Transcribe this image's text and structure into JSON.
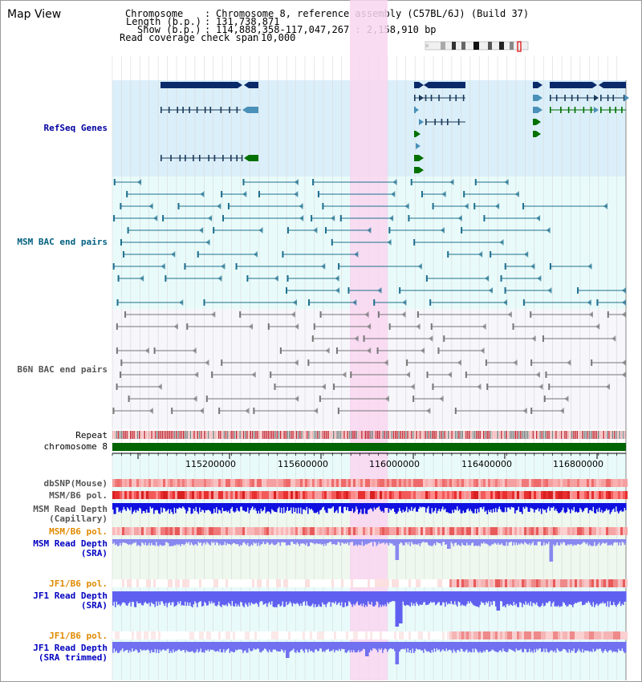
{
  "page": {
    "title": "Map View"
  },
  "info": {
    "chromosome_key": "Chromosome",
    "chromosome_value": "Chromosome 8, reference assembly (C57BL/6J) (Build 37)",
    "length_key": "Length (b.p.)",
    "length_value": "131,738,871",
    "show_key": "Show (b.p.)",
    "show_value": "114,888,358-117,047,267 : 2,158,910 bp",
    "coverage_key": "Read coverage check span",
    "coverage_value": "10,000"
  },
  "tracks": {
    "refseq": "RefSeq Genes",
    "msm_bac": "MSM BAC end pairs",
    "b6n_bac": "B6N BAC end pairs",
    "repeat": "Repeat",
    "chromosome": "chromosome 8",
    "dbsnp": "dbSNP(Mouse)",
    "msm_b6_pol": "MSM/B6 pol.",
    "msm_read_depth_cap_1": "MSM Read Depth",
    "msm_read_depth_cap_2": "(Capillary)",
    "msm_b6_pol_2": "MSM/B6 pol.",
    "msm_read_depth_sra_1": "MSM Read Depth",
    "msm_read_depth_sra_2": "(SRA)",
    "jf1_b6_pol": "JF1/B6 pol.",
    "jf1_read_depth_1": "JF1 Read Depth",
    "jf1_read_depth_2": "(SRA)",
    "jf1_b6_pol_2": "JF1/B6 pol.",
    "jf1_read_depth_trim_1": "JF1 Read Depth",
    "jf1_read_depth_trim_2": "(SRA trimmed)"
  },
  "axis": {
    "ticks": [
      "115200000",
      "115600000",
      "116000000",
      "116400000",
      "116800000"
    ]
  },
  "colors": {
    "refseq_label": "#0000a0",
    "msm_label": "#006080",
    "b6n_label": "#555555",
    "jf1_label": "#0000c0",
    "orange_label": "#e08a00",
    "highlight": "#f9d6f0",
    "chromosome_bar": "#006400"
  }
}
